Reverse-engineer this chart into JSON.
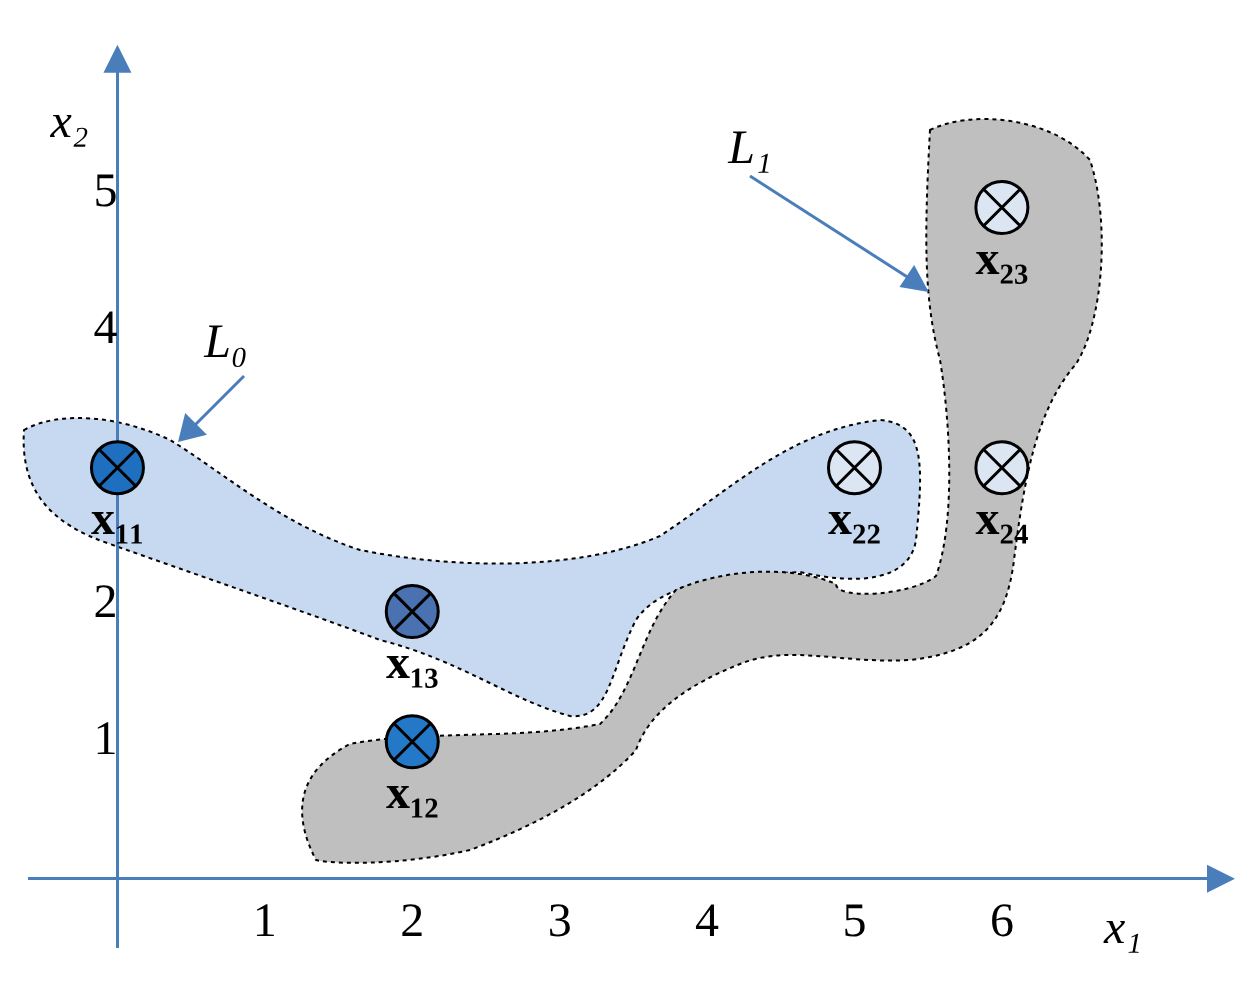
{
  "chart_data": {
    "type": "scatter",
    "xlabel": "x₁",
    "ylabel": "x₂",
    "x": [
      0,
      2,
      2,
      5,
      6,
      6
    ],
    "values": [
      3,
      1,
      1.95,
      3,
      4.9,
      3
    ],
    "colors": [
      "#1f6fc0",
      "#2378c8",
      "#4a72b0",
      "#dce6f2",
      "#dce6f2",
      "#dce6f2"
    ],
    "marker": "circle",
    "xlim": [
      -0.6,
      7.5
    ],
    "ylim": [
      -0.5,
      6
    ],
    "xticks": [
      1,
      2,
      3,
      4,
      5,
      6
    ],
    "yticks": [
      1,
      2,
      3,
      4,
      5
    ],
    "grid": false,
    "legend": false,
    "annotations": [
      {
        "text": "x₁₁",
        "x": 0,
        "y": 3
      },
      {
        "text": "x₁₂",
        "x": 2,
        "y": 1
      },
      {
        "text": "x₁₃",
        "x": 2,
        "y": 1.95
      },
      {
        "text": "x₂₂",
        "x": 5,
        "y": 3
      },
      {
        "text": "x₂₃",
        "x": 6,
        "y": 4.9
      },
      {
        "text": "x₂₄",
        "x": 6,
        "y": 3
      },
      "L₀",
      "L₁"
    ]
  }
}
